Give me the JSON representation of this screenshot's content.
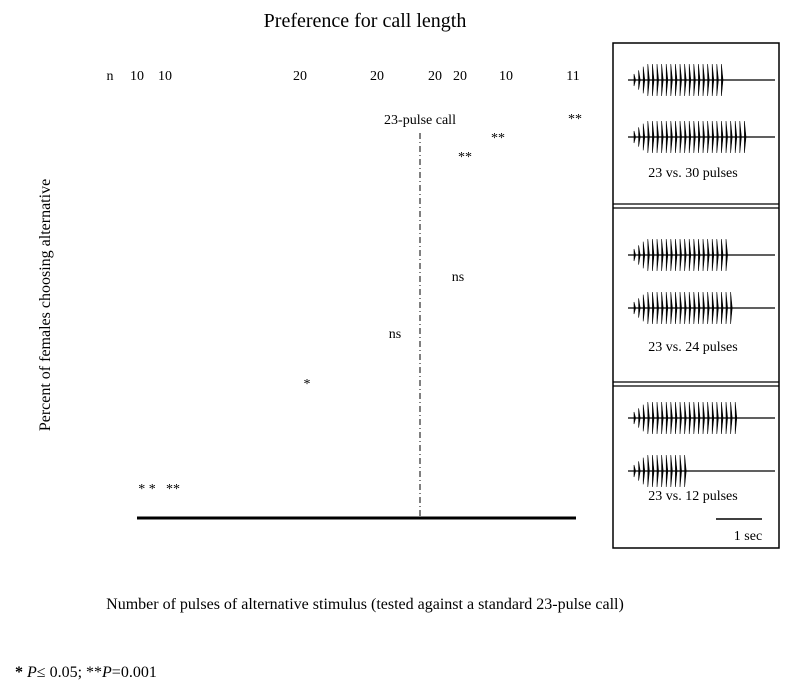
{
  "title": "Preference for call length",
  "n_row": {
    "label": "n",
    "values": [
      10,
      10,
      20,
      20,
      20,
      20,
      10,
      11
    ]
  },
  "reference_label": "23-pulse call",
  "significance": [
    "* *",
    "**",
    "*",
    "ns",
    "ns",
    "**",
    "**",
    "**"
  ],
  "y_axis_label": "Percent of females choosing alternative",
  "x_axis_label": "Number of pulses of alternative stimulus (tested against a standard 23-pulse call)",
  "panels": [
    {
      "caption": "23 vs. 30 pulses"
    },
    {
      "caption": "23 vs. 24 pulses"
    },
    {
      "caption": "23 vs. 12 pulses"
    }
  ],
  "scale_bar": "1 sec",
  "footnote": {
    "parts": [
      "*",
      " P",
      "≤ 0.05; **",
      "P",
      "=0.001"
    ]
  }
}
